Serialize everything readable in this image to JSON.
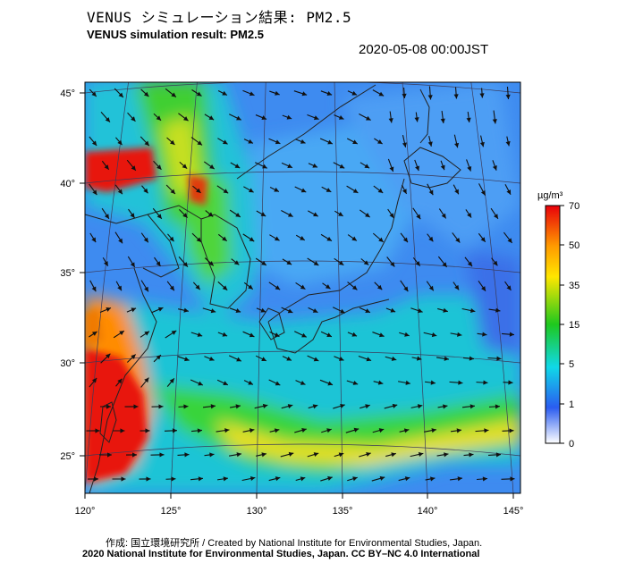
{
  "header": {
    "title_jp": "VENUS シミュレーション結果: PM2.5",
    "title_en": "VENUS simulation result: PM2.5",
    "timestamp": "2020-05-08 00:00JST"
  },
  "map": {
    "lon_ticks": [
      "120°",
      "125°",
      "130°",
      "135°",
      "140°",
      "145°"
    ],
    "lat_ticks": [
      "45°",
      "40°",
      "35°",
      "30°",
      "25°"
    ],
    "lon_range": [
      120,
      145
    ],
    "lat_range": [
      23,
      46
    ],
    "frame_colors": {
      "border": "#000000",
      "grid": "#3a3a5a",
      "coast": "#222222"
    }
  },
  "colorbar": {
    "unit": "µg/m³",
    "tick_labels": [
      "70",
      "50",
      "35",
      "15",
      "5",
      "1",
      "0"
    ],
    "stops": [
      {
        "value": 70,
        "color": "#e8000a"
      },
      {
        "value": 50,
        "color": "#ff9a00"
      },
      {
        "value": 35,
        "color": "#ffe600"
      },
      {
        "value": 15,
        "color": "#1ec81e"
      },
      {
        "value": 5,
        "color": "#10d8e8"
      },
      {
        "value": 1,
        "color": "#2a5cf0"
      },
      {
        "value": 0,
        "color": "#ffffff"
      }
    ]
  },
  "footer": {
    "credit_jp": "作成: 国立環境研究所 / Created by National Institute for Environmental Studies, Japan.",
    "credit_en": "2020 National Institute for Environmental Studies, Japan. CC BY–NC 4.0 International"
  }
}
